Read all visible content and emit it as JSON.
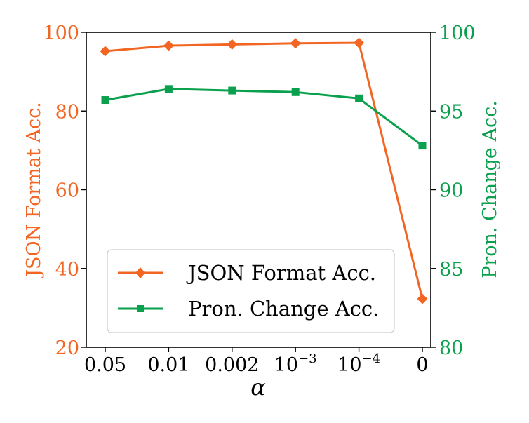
{
  "chart_data": {
    "type": "line",
    "title": "",
    "xlabel": "α",
    "categories": [
      "0.05",
      "0.01",
      "0.002",
      "10^-3",
      "10^-4",
      "0"
    ],
    "x_ticks": [
      {
        "base": "0.05",
        "exp": ""
      },
      {
        "base": "0.01",
        "exp": ""
      },
      {
        "base": "0.002",
        "exp": ""
      },
      {
        "base": "10",
        "exp": "−3"
      },
      {
        "base": "10",
        "exp": "−4"
      },
      {
        "base": "0",
        "exp": ""
      }
    ],
    "left_axis": {
      "label": "JSON Format Acc.",
      "ylim": [
        20,
        100
      ],
      "ticks": [
        "20",
        "40",
        "60",
        "80",
        "100"
      ],
      "color": "#f26522"
    },
    "right_axis": {
      "label": "Pron. Change Acc.",
      "ylim": [
        80,
        100
      ],
      "ticks": [
        "80",
        "85",
        "90",
        "95",
        "100"
      ],
      "color": "#0aa04d"
    },
    "series": [
      {
        "name": "JSON Format Acc.",
        "axis": "left",
        "marker": "diamond",
        "color": "#f26522",
        "values": [
          95.2,
          96.6,
          96.9,
          97.2,
          97.3,
          32.3
        ]
      },
      {
        "name": "Pron. Change Acc.",
        "axis": "right",
        "marker": "square",
        "color": "#0aa04d",
        "values": [
          95.7,
          96.4,
          96.3,
          96.2,
          95.8,
          92.8
        ]
      }
    ],
    "legend": {
      "position": "lower-left",
      "entries": [
        "JSON Format Acc.",
        "Pron. Change Acc."
      ]
    },
    "grid": false
  }
}
